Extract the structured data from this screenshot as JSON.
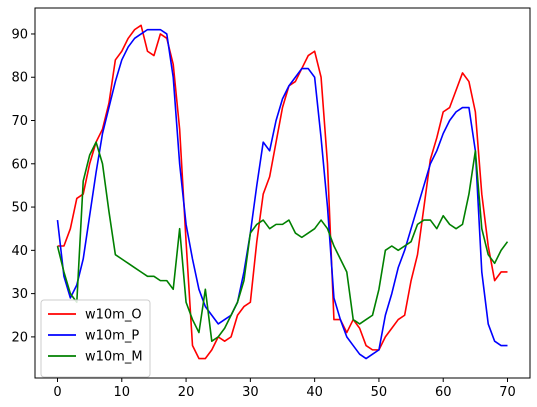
{
  "chart_data": {
    "type": "line",
    "title": "",
    "xlabel": "",
    "ylabel": "",
    "xlim": [
      -3.5,
      73.5
    ],
    "ylim": [
      10.5,
      96
    ],
    "xticks": [
      0,
      10,
      20,
      30,
      40,
      50,
      60,
      70
    ],
    "yticks": [
      20,
      30,
      40,
      50,
      60,
      70,
      80,
      90
    ],
    "grid": false,
    "legend_position": "lower-left",
    "x": [
      0,
      1,
      2,
      3,
      4,
      5,
      6,
      7,
      8,
      9,
      10,
      11,
      12,
      13,
      14,
      15,
      16,
      17,
      18,
      19,
      20,
      21,
      22,
      23,
      24,
      25,
      26,
      27,
      28,
      29,
      30,
      31,
      32,
      33,
      34,
      35,
      36,
      37,
      38,
      39,
      40,
      41,
      42,
      43,
      44,
      45,
      46,
      47,
      48,
      49,
      50,
      51,
      52,
      53,
      54,
      55,
      56,
      57,
      58,
      59,
      60,
      61,
      62,
      63,
      64,
      65,
      66,
      67,
      68,
      69,
      70
    ],
    "series": [
      {
        "name": "w10m_O",
        "color": "#ff0000",
        "values": [
          41,
          41,
          45,
          52,
          53,
          60,
          65,
          68,
          74,
          84,
          86,
          89,
          91,
          92,
          86,
          85,
          90,
          89,
          83,
          68,
          42,
          18,
          15,
          15,
          17,
          20,
          19,
          20,
          25,
          27,
          28,
          42,
          53,
          57,
          65,
          73,
          78,
          79,
          82,
          85,
          86,
          80,
          60,
          24,
          24,
          21,
          24,
          22,
          18,
          17,
          17,
          20,
          22,
          24,
          25,
          33,
          39,
          50,
          61,
          66,
          72,
          73,
          77,
          81,
          79,
          72,
          53,
          41,
          33,
          35,
          35
        ]
      },
      {
        "name": "w10m_P",
        "color": "#0000ff",
        "values": [
          47,
          34,
          29,
          32,
          38,
          48,
          58,
          67,
          73,
          79,
          84,
          87,
          89,
          90,
          91,
          91,
          91,
          90,
          80,
          60,
          46,
          38,
          31,
          27,
          25,
          23,
          24,
          25,
          28,
          35,
          44,
          55,
          65,
          63,
          70,
          75,
          78,
          80,
          82,
          82,
          80,
          66,
          50,
          29,
          24,
          20,
          18,
          16,
          15,
          16,
          17,
          25,
          30,
          36,
          40,
          45,
          50,
          55,
          60,
          63,
          67,
          70,
          72,
          73,
          73,
          63,
          35,
          23,
          19,
          18,
          18
        ]
      },
      {
        "name": "w10m_M",
        "color": "#008000",
        "values": [
          41,
          35,
          30,
          28,
          56,
          62,
          65,
          60,
          49,
          39,
          38,
          37,
          36,
          35,
          34,
          34,
          33,
          33,
          31,
          45,
          28,
          24,
          21,
          31,
          19,
          20,
          22,
          25,
          28,
          33,
          44,
          46,
          47,
          45,
          46,
          46,
          47,
          44,
          43,
          44,
          45,
          47,
          45,
          41,
          38,
          35,
          24,
          23,
          24,
          25,
          31,
          40,
          41,
          40,
          41,
          42,
          46,
          47,
          47,
          45,
          48,
          46,
          45,
          46,
          53,
          63,
          45,
          39,
          37,
          40,
          42
        ]
      }
    ]
  }
}
